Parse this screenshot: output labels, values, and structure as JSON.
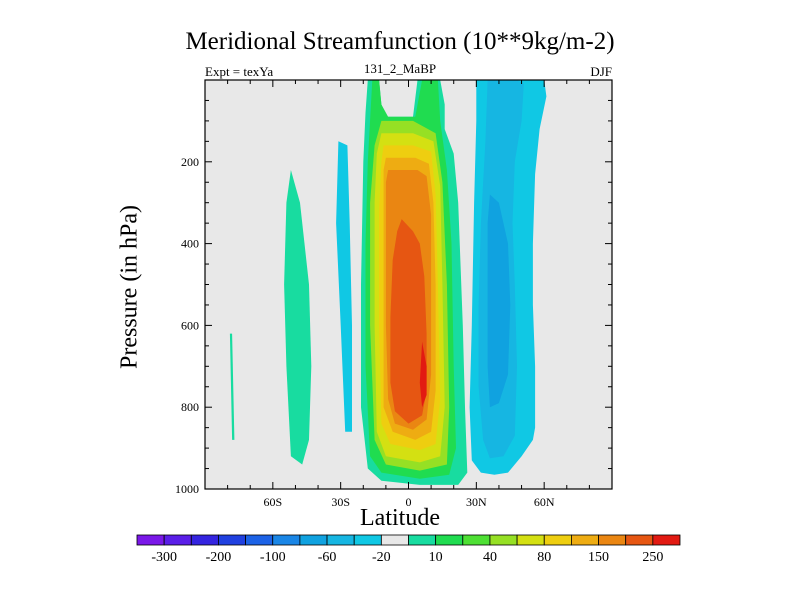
{
  "chart_data": {
    "type": "contour",
    "title": "Meridional Streamfunction (10**9kg/m-2)",
    "left_subtitle": "Expt = texYa",
    "center_subtitle": "131_2_MaBP",
    "right_subtitle": "DJF",
    "xlabel": "Latitude",
    "ylabel": "Pressure (in hPa)",
    "xlim": [
      -90,
      90
    ],
    "ylim": [
      1000,
      0
    ],
    "x_ticks": [
      {
        "value": -60,
        "label": "60S"
      },
      {
        "value": -30,
        "label": "30S"
      },
      {
        "value": 0,
        "label": "0"
      },
      {
        "value": 30,
        "label": "30N"
      },
      {
        "value": 60,
        "label": "60N"
      }
    ],
    "y_ticks": [
      {
        "value": 200,
        "label": "200"
      },
      {
        "value": 400,
        "label": "400"
      },
      {
        "value": 600,
        "label": "600"
      },
      {
        "value": 800,
        "label": "800"
      },
      {
        "value": 1000,
        "label": "1000"
      }
    ],
    "background_color": "#e8e8e8",
    "colorbar": {
      "levels": [
        -300,
        -250,
        -200,
        -150,
        -100,
        -80,
        -60,
        -40,
        -20,
        -10,
        10,
        20,
        40,
        60,
        80,
        100,
        150,
        200,
        250,
        300
      ],
      "labeled_levels": [
        "-300",
        "-200",
        "-100",
        "-60",
        "-20",
        "10",
        "40",
        "80",
        "150",
        "250"
      ],
      "colors": [
        "#7a18e8",
        "#5a1ee8",
        "#3424e0",
        "#2040e0",
        "#1c62e6",
        "#1a86e6",
        "#10a2e0",
        "#16b6e2",
        "#10c8e4",
        "#e8e8e8",
        "#18dca0",
        "#20dc50",
        "#4ee034",
        "#96e024",
        "#d4e012",
        "#eece10",
        "#eeac12",
        "#ea8612",
        "#e65612",
        "#e21a12"
      ]
    },
    "regions": [
      {
        "level": 10,
        "color": "#18dca0",
        "points": [
          [
            -78,
            620
          ],
          [
            -77,
            880
          ],
          [
            -78,
            880
          ],
          [
            -79,
            620
          ]
        ]
      },
      {
        "level": 10,
        "color": "#18dca0",
        "points": [
          [
            -52,
            220
          ],
          [
            -48,
            300
          ],
          [
            -44,
            500
          ],
          [
            -43,
            700
          ],
          [
            -44,
            880
          ],
          [
            -47,
            940
          ],
          [
            -52,
            920
          ],
          [
            -54,
            700
          ],
          [
            -55,
            500
          ],
          [
            -54,
            300
          ]
        ]
      },
      {
        "level": -10,
        "color": "#10c8e4",
        "points": [
          [
            -31,
            150
          ],
          [
            -27,
            160
          ],
          [
            -26,
            350
          ],
          [
            -25,
            600
          ],
          [
            -25,
            860
          ],
          [
            -28,
            860
          ],
          [
            -30,
            600
          ],
          [
            -32,
            350
          ]
        ]
      },
      {
        "level": 10,
        "color": "#18dca0",
        "points": [
          [
            -18,
            0
          ],
          [
            -13,
            0
          ],
          [
            -12,
            60
          ],
          [
            -10,
            90
          ],
          [
            2,
            90
          ],
          [
            4,
            0
          ],
          [
            14,
            0
          ],
          [
            16,
            60
          ],
          [
            16,
            120
          ],
          [
            20,
            180
          ],
          [
            22,
            300
          ],
          [
            24,
            600
          ],
          [
            25,
            800
          ],
          [
            26,
            960
          ],
          [
            22,
            990
          ],
          [
            5,
            990
          ],
          [
            -12,
            980
          ],
          [
            -18,
            950
          ],
          [
            -21,
            800
          ],
          [
            -21,
            500
          ],
          [
            -20,
            200
          ],
          [
            -19,
            80
          ]
        ]
      },
      {
        "level": 20,
        "color": "#20dc50",
        "points": [
          [
            -16,
            0
          ],
          [
            -13,
            0
          ],
          [
            -12,
            60
          ],
          [
            -9,
            90
          ],
          [
            3,
            90
          ],
          [
            6,
            0
          ],
          [
            13,
            0
          ],
          [
            14,
            100
          ],
          [
            17,
            220
          ],
          [
            19,
            400
          ],
          [
            20,
            700
          ],
          [
            21,
            900
          ],
          [
            18,
            965
          ],
          [
            5,
            975
          ],
          [
            -12,
            960
          ],
          [
            -17,
            920
          ],
          [
            -19,
            700
          ],
          [
            -19,
            400
          ],
          [
            -18,
            200
          ]
        ]
      },
      {
        "level": 40,
        "color": "#96e024",
        "points": [
          [
            -12,
            100
          ],
          [
            2,
            100
          ],
          [
            12,
            130
          ],
          [
            15,
            250
          ],
          [
            17,
            500
          ],
          [
            18,
            800
          ],
          [
            17,
            940
          ],
          [
            5,
            955
          ],
          [
            -10,
            940
          ],
          [
            -15,
            880
          ],
          [
            -17,
            600
          ],
          [
            -17,
            300
          ],
          [
            -15,
            160
          ]
        ]
      },
      {
        "level": 60,
        "color": "#d4e012",
        "points": [
          [
            -12,
            130
          ],
          [
            2,
            130
          ],
          [
            11,
            150
          ],
          [
            14,
            260
          ],
          [
            15,
            500
          ],
          [
            16,
            800
          ],
          [
            14,
            920
          ],
          [
            5,
            935
          ],
          [
            -10,
            920
          ],
          [
            -14,
            860
          ],
          [
            -15,
            600
          ],
          [
            -15,
            300
          ],
          [
            -14,
            180
          ]
        ]
      },
      {
        "level": 80,
        "color": "#eece10",
        "points": [
          [
            -11,
            160
          ],
          [
            2,
            160
          ],
          [
            10,
            175
          ],
          [
            12,
            280
          ],
          [
            13,
            500
          ],
          [
            14,
            780
          ],
          [
            12,
            890
          ],
          [
            5,
            905
          ],
          [
            -8,
            890
          ],
          [
            -12,
            840
          ],
          [
            -13,
            600
          ],
          [
            -13,
            320
          ],
          [
            -12,
            200
          ]
        ]
      },
      {
        "level": 100,
        "color": "#eeac12",
        "points": [
          [
            -10,
            190
          ],
          [
            3,
            190
          ],
          [
            9,
            205
          ],
          [
            11,
            300
          ],
          [
            12,
            500
          ],
          [
            12,
            760
          ],
          [
            10,
            860
          ],
          [
            3,
            880
          ],
          [
            -7,
            860
          ],
          [
            -11,
            800
          ],
          [
            -11,
            600
          ],
          [
            -11,
            350
          ],
          [
            -11,
            220
          ]
        ]
      },
      {
        "level": 150,
        "color": "#ea8612",
        "points": [
          [
            -9,
            220
          ],
          [
            4,
            220
          ],
          [
            8,
            235
          ],
          [
            10,
            330
          ],
          [
            10,
            520
          ],
          [
            10,
            720
          ],
          [
            8,
            830
          ],
          [
            2,
            855
          ],
          [
            -6,
            840
          ],
          [
            -9,
            780
          ],
          [
            -10,
            600
          ],
          [
            -10,
            380
          ],
          [
            -10,
            250
          ]
        ]
      },
      {
        "level": 200,
        "color": "#e65612",
        "points": [
          [
            -3,
            340
          ],
          [
            2,
            370
          ],
          [
            5,
            400
          ],
          [
            7,
            480
          ],
          [
            8,
            620
          ],
          [
            8,
            760
          ],
          [
            6,
            820
          ],
          [
            0,
            840
          ],
          [
            -6,
            810
          ],
          [
            -8,
            740
          ],
          [
            -8,
            580
          ],
          [
            -7,
            440
          ],
          [
            -5,
            370
          ]
        ]
      },
      {
        "level": 250,
        "color": "#e21a12",
        "points": [
          [
            6,
            640
          ],
          [
            8,
            700
          ],
          [
            8,
            770
          ],
          [
            6,
            800
          ],
          [
            5,
            740
          ]
        ]
      },
      {
        "level": -10,
        "color": "#10c8e4",
        "points": [
          [
            30,
            0
          ],
          [
            36,
            0
          ],
          [
            48,
            0
          ],
          [
            60,
            0
          ],
          [
            61,
            40
          ],
          [
            58,
            120
          ],
          [
            56,
            230
          ],
          [
            55,
            400
          ],
          [
            55,
            550
          ],
          [
            56,
            700
          ],
          [
            56,
            850
          ],
          [
            55,
            880
          ],
          [
            50,
            920
          ],
          [
            44,
            960
          ],
          [
            38,
            965
          ],
          [
            32,
            960
          ],
          [
            28,
            930
          ],
          [
            27,
            800
          ],
          [
            28,
            600
          ],
          [
            29,
            300
          ],
          [
            30,
            100
          ]
        ]
      },
      {
        "level": -20,
        "color": "#16b6e2",
        "points": [
          [
            35,
            0
          ],
          [
            42,
            0
          ],
          [
            48,
            0
          ],
          [
            51,
            10
          ],
          [
            50,
            100
          ],
          [
            47,
            200
          ],
          [
            46,
            350
          ],
          [
            47,
            500
          ],
          [
            48,
            700
          ],
          [
            47,
            870
          ],
          [
            42,
            920
          ],
          [
            36,
            925
          ],
          [
            33,
            880
          ],
          [
            31,
            750
          ],
          [
            31,
            550
          ],
          [
            32,
            350
          ],
          [
            34,
            150
          ]
        ]
      },
      {
        "level": -40,
        "color": "#10a2e0",
        "points": [
          [
            36,
            280
          ],
          [
            40,
            300
          ],
          [
            44,
            400
          ],
          [
            45,
            550
          ],
          [
            44,
            720
          ],
          [
            40,
            790
          ],
          [
            36,
            800
          ],
          [
            35,
            700
          ],
          [
            35,
            500
          ],
          [
            35,
            350
          ]
        ]
      }
    ]
  }
}
